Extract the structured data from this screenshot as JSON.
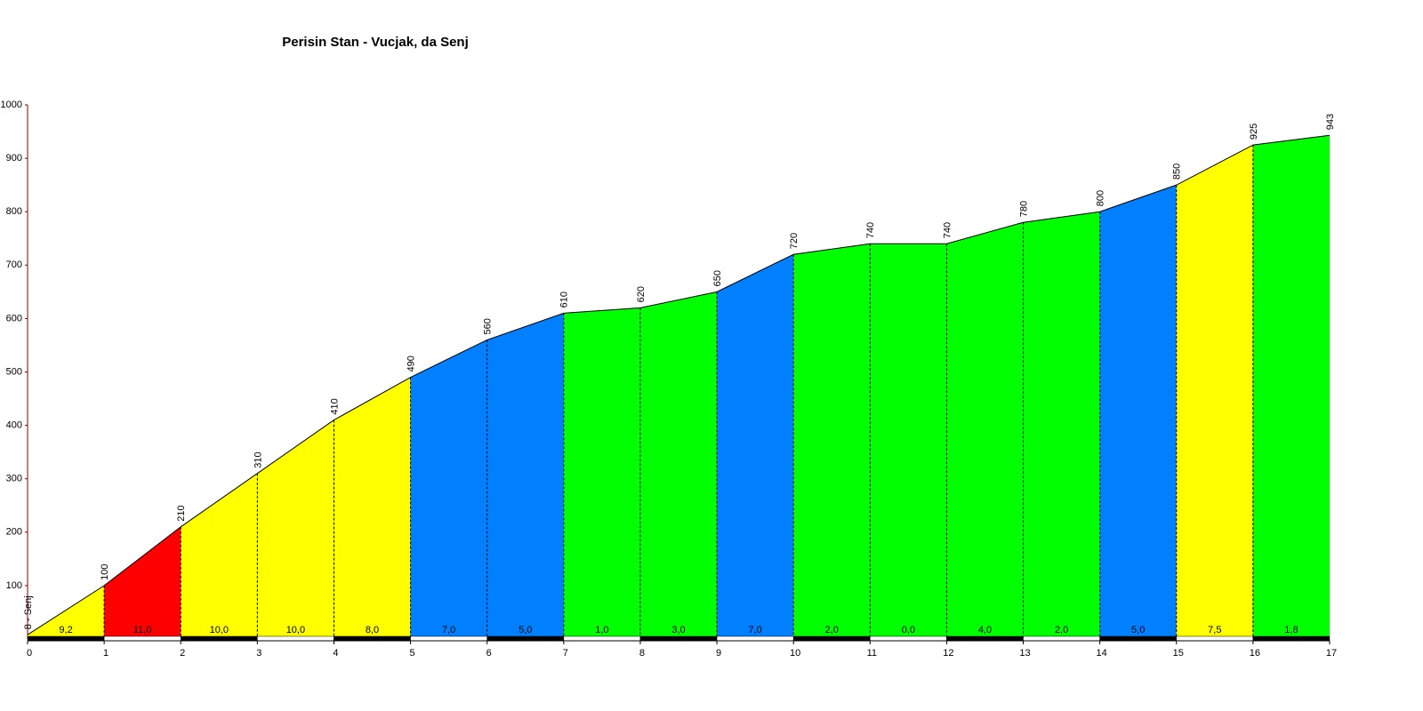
{
  "chart_data": {
    "type": "elevation_profile",
    "title": "Perisin Stan - Vucjak, da Senj",
    "x": [
      0,
      1,
      2,
      3,
      4,
      5,
      6,
      7,
      8,
      9,
      10,
      11,
      12,
      13,
      14,
      15,
      16,
      17
    ],
    "values": [
      8,
      100,
      210,
      310,
      410,
      490,
      560,
      610,
      620,
      650,
      720,
      740,
      740,
      780,
      800,
      850,
      925,
      943
    ],
    "value_labels": [
      "8 - Senj",
      "100",
      "210",
      "310",
      "410",
      "490",
      "560",
      "610",
      "620",
      "650",
      "720",
      "740",
      "740",
      "780",
      "800",
      "850",
      "925",
      "943"
    ],
    "gradients": [
      9.2,
      11,
      10,
      10,
      8,
      7,
      5,
      1,
      3,
      7,
      2,
      0,
      4,
      2,
      5,
      7.5,
      1.8
    ],
    "gradient_labels": [
      "9,2",
      "11,0",
      "10,0",
      "10,0",
      "8,0",
      "7,0",
      "5,0",
      "1,0",
      "3,0",
      "7,0",
      "2,0",
      "0,0",
      "4,0",
      "2,0",
      "5,0",
      "7,5",
      "1,8"
    ],
    "segment_colors": [
      "#ffff00",
      "#ff0000",
      "#ffff00",
      "#ffff00",
      "#ffff00",
      "#0080ff",
      "#0080ff",
      "#00ff00",
      "#00ff00",
      "#0080ff",
      "#00ff00",
      "#00ff00",
      "#00ff00",
      "#00ff00",
      "#0080ff",
      "#ffff00",
      "#00ff00"
    ],
    "xlim": [
      0,
      17
    ],
    "ylim": [
      0,
      1000
    ],
    "xticks": [
      0,
      1,
      2,
      3,
      4,
      5,
      6,
      7,
      8,
      9,
      10,
      11,
      12,
      13,
      14,
      15,
      16,
      17
    ],
    "yticks": [
      100,
      200,
      300,
      400,
      500,
      600,
      700,
      800,
      900,
      1000
    ]
  }
}
